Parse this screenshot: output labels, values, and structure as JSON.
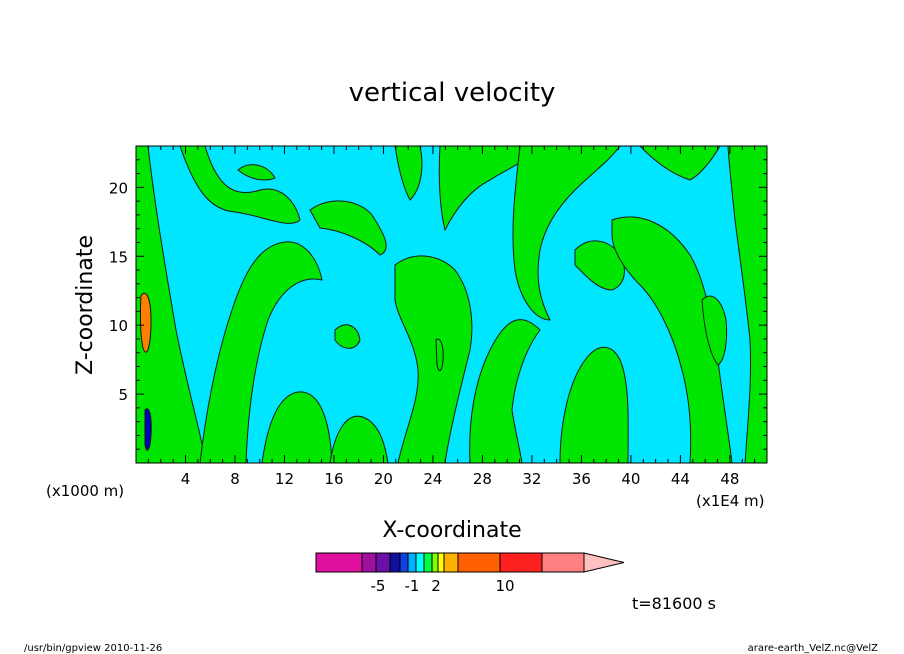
{
  "footer": {
    "left": "/usr/bin/gpview   2010-11-26",
    "right": "arare-earth_VelZ.nc@VelZ"
  },
  "time_label": "t=81600 s",
  "chart_data": {
    "type": "heatmap",
    "title": "vertical velocity",
    "xlabel": "X-coordinate",
    "ylabel": "Z-coordinate",
    "x_unit_left": "(x1000 m)",
    "x_unit_right": "(x1E4 m)",
    "x_ticks": [
      4,
      8,
      12,
      16,
      20,
      24,
      28,
      32,
      36,
      40,
      44,
      48
    ],
    "y_ticks": [
      5,
      10,
      15,
      20
    ],
    "xlim": [
      0,
      51
    ],
    "ylim": [
      0,
      23
    ],
    "colorbar": {
      "colors": [
        "#e0109f",
        "#a0109f",
        "#6a10a8",
        "#1010a0",
        "#1040e0",
        "#00b0ff",
        "#00ffff",
        "#00ff40",
        "#80ff00",
        "#ffff00",
        "#ffb000",
        "#ff6000",
        "#ff2020",
        "#ff8080",
        "#ffc0c0"
      ],
      "tick_labels": [
        "-5",
        "-1",
        "2",
        "10"
      ]
    },
    "field": {
      "background": "#00e6ff",
      "upward": "#00e600",
      "strong": [
        "#ff8000",
        "#0000c0"
      ]
    }
  }
}
